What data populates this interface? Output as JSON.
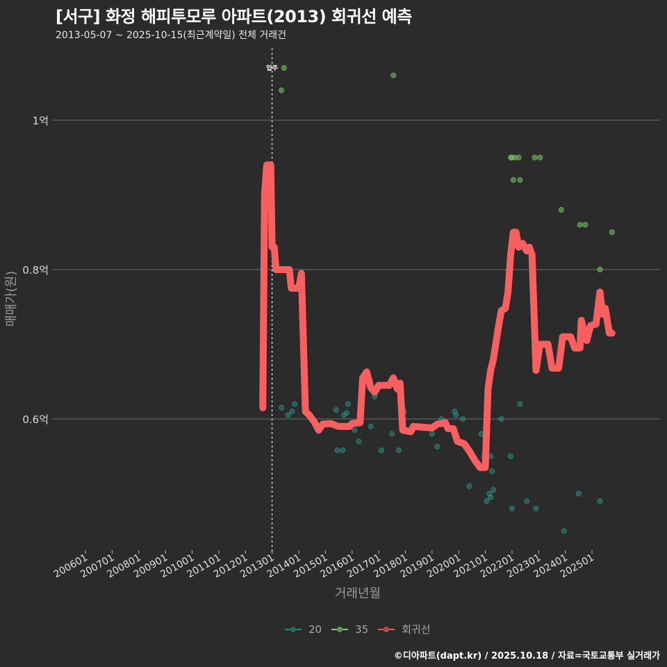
{
  "header": {
    "title": "[서구] 화정 해피투모루 아파트(2013) 회귀선 예측",
    "subtitle": "2013-05-07 ~ 2025-10-15(최근계약일) 전체 거래건"
  },
  "footer": {
    "caption": "©디아파트(dapt.kr) / 2025.10.18 / 자료=국토교통부 실거래가"
  },
  "legend": {
    "items": [
      {
        "label": "20",
        "color": "#1f8f7f"
      },
      {
        "label": "35",
        "color": "#7ecf6a"
      },
      {
        "label": "회귀선",
        "color": "#f25c5c"
      }
    ]
  },
  "annotation": {
    "label": "입주",
    "x": "201301"
  },
  "colors": {
    "background": "#2b2b2c",
    "grid": "#6b6b6b",
    "regression": "#f85f5f",
    "area20": "#2a9d8f",
    "area35": "#6abf5e"
  },
  "chart_data": {
    "type": "line",
    "title": "[서구] 화정 해피투모루 아파트(2013) 회귀선 예측",
    "subtitle": "2013-05-07 ~ 2025-10-15(최근계약일) 전체 거래건",
    "xlabel": "거래년월",
    "ylabel": "매매가(원)",
    "x_ticks": [
      "200601",
      "200701",
      "200801",
      "200901",
      "201001",
      "201101",
      "201201",
      "201301",
      "201401",
      "201501",
      "201601",
      "201701",
      "201801",
      "201901",
      "202001",
      "202101",
      "202201",
      "202301",
      "202401",
      "202501"
    ],
    "y_ticks": [
      {
        "value": 0.6,
        "label": "0.6억"
      },
      {
        "value": 0.8,
        "label": "0.8억"
      },
      {
        "value": 1.0,
        "label": "1억"
      }
    ],
    "ylim": [
      0.43,
      1.1
    ],
    "grid": "horizontal",
    "legend_position": "bottom",
    "vline": {
      "x": 2013.0,
      "label": "입주",
      "style": "dotted"
    },
    "series": [
      {
        "name": "회귀선",
        "type": "line",
        "points": [
          [
            2012.65,
            0.615
          ],
          [
            2012.72,
            0.9
          ],
          [
            2012.8,
            0.94
          ],
          [
            2012.95,
            0.94
          ],
          [
            2013.0,
            0.83
          ],
          [
            2013.08,
            0.83
          ],
          [
            2013.15,
            0.8
          ],
          [
            2013.65,
            0.8
          ],
          [
            2013.72,
            0.775
          ],
          [
            2014.0,
            0.775
          ],
          [
            2014.1,
            0.795
          ],
          [
            2014.25,
            0.61
          ],
          [
            2014.4,
            0.605
          ],
          [
            2014.6,
            0.595
          ],
          [
            2014.75,
            0.585
          ],
          [
            2014.9,
            0.593
          ],
          [
            2015.2,
            0.594
          ],
          [
            2015.5,
            0.59
          ],
          [
            2015.9,
            0.59
          ],
          [
            2016.0,
            0.594
          ],
          [
            2016.3,
            0.595
          ],
          [
            2016.4,
            0.655
          ],
          [
            2016.55,
            0.663
          ],
          [
            2016.7,
            0.642
          ],
          [
            2016.85,
            0.636
          ],
          [
            2017.0,
            0.645
          ],
          [
            2017.4,
            0.645
          ],
          [
            2017.55,
            0.655
          ],
          [
            2017.7,
            0.64
          ],
          [
            2017.8,
            0.648
          ],
          [
            2017.9,
            0.585
          ],
          [
            2018.2,
            0.583
          ],
          [
            2018.3,
            0.59
          ],
          [
            2019.0,
            0.588
          ],
          [
            2019.2,
            0.593
          ],
          [
            2019.5,
            0.595
          ],
          [
            2019.6,
            0.587
          ],
          [
            2019.8,
            0.587
          ],
          [
            2019.95,
            0.57
          ],
          [
            2020.2,
            0.567
          ],
          [
            2020.4,
            0.557
          ],
          [
            2020.6,
            0.545
          ],
          [
            2020.8,
            0.535
          ],
          [
            2021.0,
            0.535
          ],
          [
            2021.1,
            0.64
          ],
          [
            2021.2,
            0.665
          ],
          [
            2021.3,
            0.68
          ],
          [
            2021.5,
            0.725
          ],
          [
            2021.6,
            0.745
          ],
          [
            2021.75,
            0.748
          ],
          [
            2021.85,
            0.77
          ],
          [
            2021.95,
            0.82
          ],
          [
            2022.05,
            0.85
          ],
          [
            2022.15,
            0.85
          ],
          [
            2022.25,
            0.83
          ],
          [
            2022.4,
            0.835
          ],
          [
            2022.55,
            0.825
          ],
          [
            2022.65,
            0.83
          ],
          [
            2022.75,
            0.82
          ],
          [
            2022.9,
            0.665
          ],
          [
            2023.05,
            0.7
          ],
          [
            2023.35,
            0.7
          ],
          [
            2023.5,
            0.668
          ],
          [
            2023.75,
            0.668
          ],
          [
            2023.9,
            0.71
          ],
          [
            2024.2,
            0.71
          ],
          [
            2024.35,
            0.695
          ],
          [
            2024.55,
            0.695
          ],
          [
            2024.6,
            0.732
          ],
          [
            2024.8,
            0.705
          ],
          [
            2024.95,
            0.725
          ],
          [
            2025.15,
            0.727
          ],
          [
            2025.3,
            0.77
          ],
          [
            2025.4,
            0.74
          ],
          [
            2025.5,
            0.748
          ],
          [
            2025.65,
            0.715
          ],
          [
            2025.75,
            0.715
          ]
        ]
      },
      {
        "name": "20",
        "type": "scatter",
        "points": [
          [
            2013.35,
            0.615
          ],
          [
            2013.6,
            0.605
          ],
          [
            2013.75,
            0.61
          ],
          [
            2013.85,
            0.62
          ],
          [
            2015.4,
            0.612
          ],
          [
            2015.45,
            0.558
          ],
          [
            2015.65,
            0.558
          ],
          [
            2015.7,
            0.605
          ],
          [
            2015.8,
            0.608
          ],
          [
            2015.85,
            0.62
          ],
          [
            2016.1,
            0.585
          ],
          [
            2016.25,
            0.57
          ],
          [
            2016.7,
            0.59
          ],
          [
            2016.85,
            0.63
          ],
          [
            2017.1,
            0.558
          ],
          [
            2017.5,
            0.58
          ],
          [
            2017.75,
            0.558
          ],
          [
            2017.95,
            0.61
          ],
          [
            2018.35,
            0.59
          ],
          [
            2019.0,
            0.58
          ],
          [
            2019.2,
            0.563
          ],
          [
            2019.35,
            0.6
          ],
          [
            2019.85,
            0.61
          ],
          [
            2019.9,
            0.605
          ],
          [
            2020.15,
            0.6
          ],
          [
            2020.4,
            0.51
          ],
          [
            2020.85,
            0.58
          ],
          [
            2020.95,
            0.55
          ],
          [
            2021.2,
            0.55
          ],
          [
            2021.25,
            0.53
          ],
          [
            2021.15,
            0.5
          ],
          [
            2021.2,
            0.495
          ],
          [
            2021.3,
            0.505
          ],
          [
            2021.05,
            0.49
          ],
          [
            2021.6,
            0.6
          ],
          [
            2021.95,
            0.55
          ],
          [
            2022.0,
            0.48
          ],
          [
            2022.3,
            0.62
          ],
          [
            2022.55,
            0.49
          ],
          [
            2022.9,
            0.48
          ],
          [
            2023.95,
            0.45
          ],
          [
            2024.5,
            0.5
          ],
          [
            2025.3,
            0.49
          ]
        ]
      },
      {
        "name": "35",
        "type": "scatter",
        "points": [
          [
            2013.45,
            1.07
          ],
          [
            2013.35,
            1.04
          ],
          [
            2017.55,
            1.06
          ],
          [
            2021.95,
            0.95
          ],
          [
            2022.0,
            0.95
          ],
          [
            2022.1,
            0.95
          ],
          [
            2022.25,
            0.95
          ],
          [
            2022.05,
            0.92
          ],
          [
            2022.3,
            0.92
          ],
          [
            2022.85,
            0.95
          ],
          [
            2023.05,
            0.95
          ],
          [
            2023.85,
            0.88
          ],
          [
            2024.55,
            0.86
          ],
          [
            2024.75,
            0.86
          ],
          [
            2025.3,
            0.8
          ],
          [
            2025.75,
            0.85
          ]
        ]
      }
    ]
  }
}
